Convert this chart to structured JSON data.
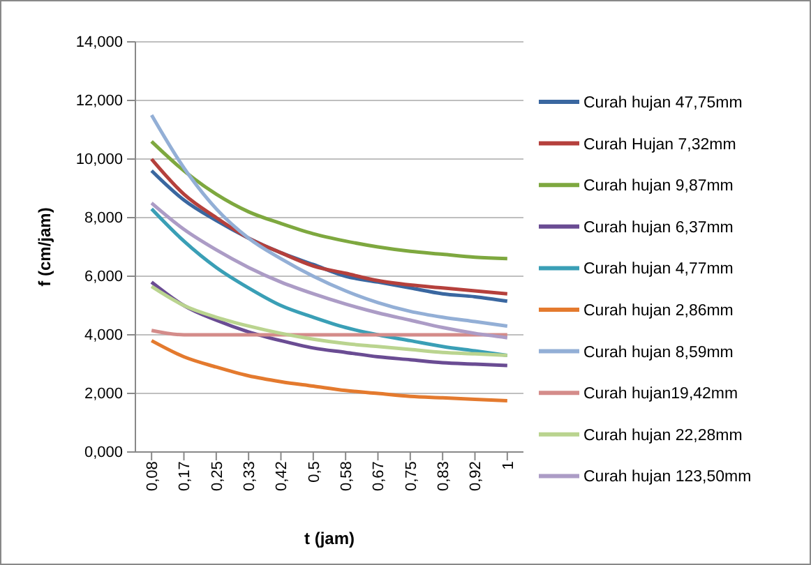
{
  "chart_data": {
    "type": "line",
    "xlabel": "t (jam)",
    "ylabel": "f (cm/jam)",
    "categories": [
      "0,08",
      "0,17",
      "0,25",
      "0,33",
      "0,42",
      "0,5",
      "0,58",
      "0,67",
      "0,75",
      "0,83",
      "0,92",
      "1"
    ],
    "ylim": [
      0,
      14
    ],
    "yticks": [
      {
        "value": 0,
        "label": "0,000"
      },
      {
        "value": 2,
        "label": "2,000"
      },
      {
        "value": 4,
        "label": "4,000"
      },
      {
        "value": 6,
        "label": "6,000"
      },
      {
        "value": 8,
        "label": "8,000"
      },
      {
        "value": 10,
        "label": "10,000"
      },
      {
        "value": 12,
        "label": "12,000"
      },
      {
        "value": 14,
        "label": "14,000"
      }
    ],
    "grid": "y",
    "legend": "right",
    "marker": "none",
    "line_style": "solid",
    "series": [
      {
        "name": "Curah hujan 47,75mm",
        "color": "#3a67a0",
        "values": [
          9.6,
          8.6,
          7.9,
          7.3,
          6.8,
          6.4,
          6.0,
          5.8,
          5.6,
          5.4,
          5.3,
          5.15
        ]
      },
      {
        "name": "Curah Hujan 7,32mm",
        "color": "#b5403c",
        "values": [
          10.0,
          8.8,
          8.0,
          7.3,
          6.8,
          6.35,
          6.1,
          5.85,
          5.7,
          5.6,
          5.5,
          5.4
        ]
      },
      {
        "name": "Curah hujan 9,87mm",
        "color": "#7ea83f",
        "values": [
          10.6,
          9.6,
          8.8,
          8.2,
          7.8,
          7.45,
          7.2,
          7.0,
          6.85,
          6.75,
          6.65,
          6.6
        ]
      },
      {
        "name": "Curah hujan 6,37mm",
        "color": "#6a4c93",
        "values": [
          5.8,
          5.0,
          4.5,
          4.1,
          3.8,
          3.55,
          3.4,
          3.25,
          3.15,
          3.05,
          3.0,
          2.95
        ]
      },
      {
        "name": "Curah hujan 4,77mm",
        "color": "#3a9fb6",
        "values": [
          8.3,
          7.2,
          6.3,
          5.6,
          5.0,
          4.6,
          4.25,
          4.0,
          3.8,
          3.6,
          3.45,
          3.3
        ]
      },
      {
        "name": "Curah hujan 2,86mm",
        "color": "#e47a2e",
        "values": [
          3.8,
          3.25,
          2.9,
          2.6,
          2.4,
          2.25,
          2.1,
          2.0,
          1.9,
          1.85,
          1.8,
          1.75
        ]
      },
      {
        "name": "Curah hujan 8,59mm",
        "color": "#93afd6",
        "values": [
          11.5,
          9.7,
          8.3,
          7.3,
          6.6,
          6.0,
          5.5,
          5.1,
          4.8,
          4.6,
          4.45,
          4.3
        ]
      },
      {
        "name": "Curah hujan19,42mm",
        "color": "#d48c8a",
        "values": [
          4.15,
          4.0,
          4.0,
          4.0,
          4.0,
          4.0,
          4.0,
          4.0,
          4.0,
          4.0,
          4.0,
          4.0
        ]
      },
      {
        "name": "Curah hujan 22,28mm",
        "color": "#bad48f",
        "values": [
          5.65,
          5.0,
          4.6,
          4.3,
          4.05,
          3.85,
          3.7,
          3.6,
          3.5,
          3.4,
          3.35,
          3.3
        ]
      },
      {
        "name": "Curah hujan 123,50mm",
        "color": "#ac9cc6",
        "values": [
          8.5,
          7.6,
          6.9,
          6.3,
          5.8,
          5.4,
          5.05,
          4.75,
          4.5,
          4.25,
          4.05,
          3.9
        ]
      }
    ]
  }
}
